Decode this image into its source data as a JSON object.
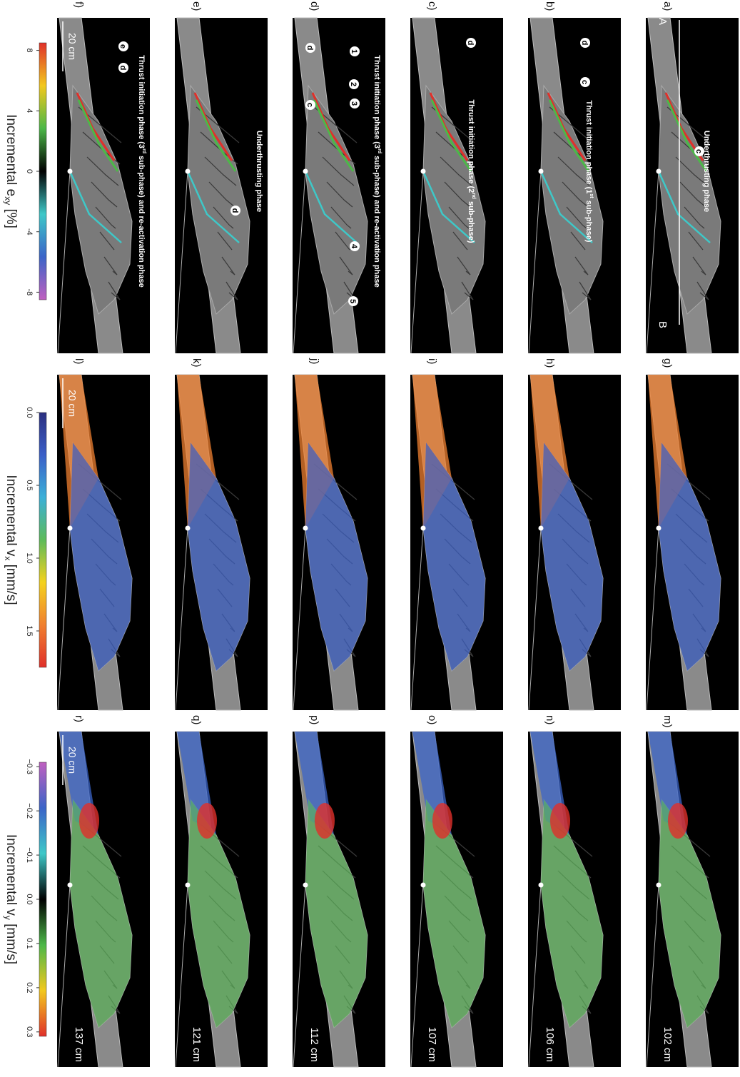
{
  "panels": [
    {
      "label": "a)",
      "title": {
        "text": "Underthrusting phase"
      },
      "annotations": [
        "A",
        "B",
        "c"
      ]
    },
    {
      "label": "b)",
      "title": {
        "text": "Thrust initiation phase (1",
        "sup": "st",
        "after": " sub-phase)"
      },
      "annotations": [
        "d",
        "c"
      ]
    },
    {
      "label": "c)",
      "title": {
        "text": "Thrust initiation phase (2",
        "sup": "nd",
        "after": " sub-phase)"
      },
      "annotations": [
        "d"
      ]
    },
    {
      "label": "d)",
      "title": {
        "text": "Thrust initiation phase (3",
        "sup": "rd",
        "after": " sub-phase) and re-activation phase"
      },
      "annotations": [
        "1",
        "2",
        "3",
        "4",
        "5",
        "d",
        "c"
      ]
    },
    {
      "label": "e)",
      "title": {
        "text": "Underthrusting phase"
      },
      "annotations": [
        "d"
      ]
    },
    {
      "label": "f)",
      "title": {
        "text": "Thrust initiation phase (3",
        "sup": "rd",
        "after": " sub-phase) and re-activation phase"
      },
      "annotations": [
        "e",
        "d"
      ],
      "scale_bar": "20 cm"
    },
    {
      "label": "g)"
    },
    {
      "label": "h)"
    },
    {
      "label": "i)"
    },
    {
      "label": "j)"
    },
    {
      "label": "k)"
    },
    {
      "label": "l)",
      "scale_bar": "20 cm"
    },
    {
      "label": "m)",
      "distance": "102 cm"
    },
    {
      "label": "n)",
      "distance": "106 cm"
    },
    {
      "label": "o)",
      "distance": "107 cm"
    },
    {
      "label": "p)",
      "distance": "112 cm"
    },
    {
      "label": "q)",
      "distance": "121 cm"
    },
    {
      "label": "r)",
      "distance": "137 cm",
      "scale_bar": "20 cm"
    }
  ],
  "colorbars": [
    {
      "title": {
        "main": "Incremental e",
        "sub": "xy",
        "unit": " [%]"
      },
      "lim": [
        8.5,
        -8.5
      ],
      "ticks": [
        8,
        4,
        0,
        -4,
        -8
      ],
      "colors": [
        "#e0302a",
        "#f2c81d",
        "#4cb848",
        "#000000",
        "#3ec8c8",
        "#3b64c8",
        "#c060c0"
      ]
    },
    {
      "title": {
        "main": "Incremental v",
        "sub": "x",
        "unit": " [mm/s]"
      },
      "lim": [
        0,
        1.75
      ],
      "ticks": [
        {
          "value": 0,
          "label": "0.0"
        },
        0.5,
        {
          "value": 1,
          "label": "1.0"
        },
        1.5
      ],
      "colors": [
        "#2b2f80",
        "#3b5fc8",
        "#3bb0d8",
        "#5dbb5a",
        "#f4d21e",
        "#f08030",
        "#e0302a"
      ]
    },
    {
      "title": {
        "main": "Incremental v",
        "sub": "y",
        "unit": " [mm/s]"
      },
      "lim": [
        -0.31,
        0.31
      ],
      "ticks": [
        {
          "value": -0.3,
          "label": "−0.3"
        },
        {
          "value": -0.2,
          "label": "−0.2"
        },
        {
          "value": -0.1,
          "label": "−0.1"
        },
        {
          "value": 0,
          "label": "0.0"
        },
        0.1,
        0.2,
        0.3
      ],
      "colors": [
        "#c060c0",
        "#3b64c8",
        "#3ec8c8",
        "#000000",
        "#4cb848",
        "#f2c81d",
        "#e0302a"
      ]
    }
  ]
}
